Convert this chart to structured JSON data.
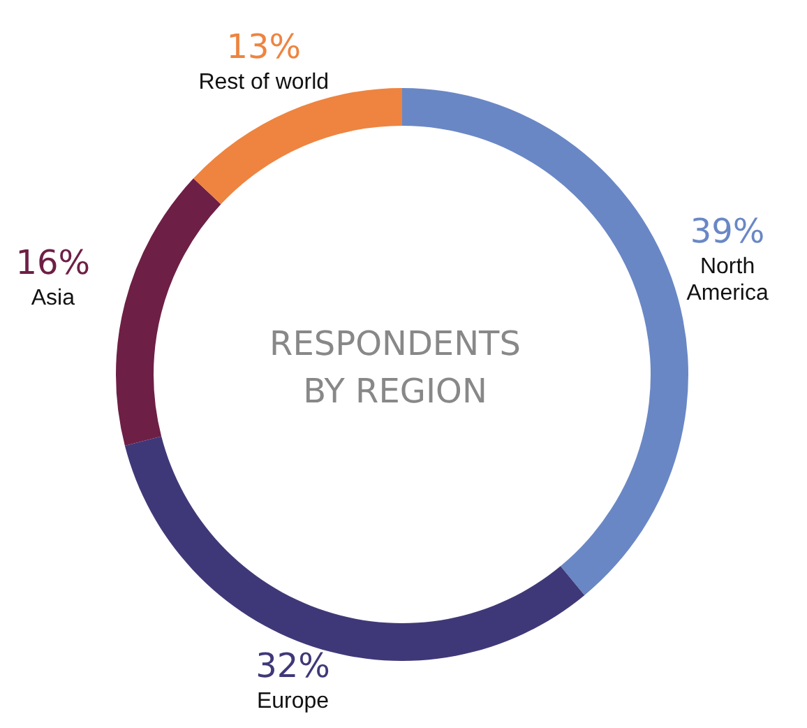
{
  "chart_data": {
    "type": "donut",
    "title": "RESPONDENTS BY REGION",
    "categories": [
      "North America",
      "Europe",
      "Asia",
      "Rest of world"
    ],
    "values": [
      39,
      32,
      16,
      13
    ],
    "value_labels": [
      "39%",
      "32%",
      "16%",
      "13%"
    ],
    "colors": [
      "#6a87c5",
      "#3f3878",
      "#6e1f45",
      "#ee8440"
    ],
    "legend": false
  }
}
